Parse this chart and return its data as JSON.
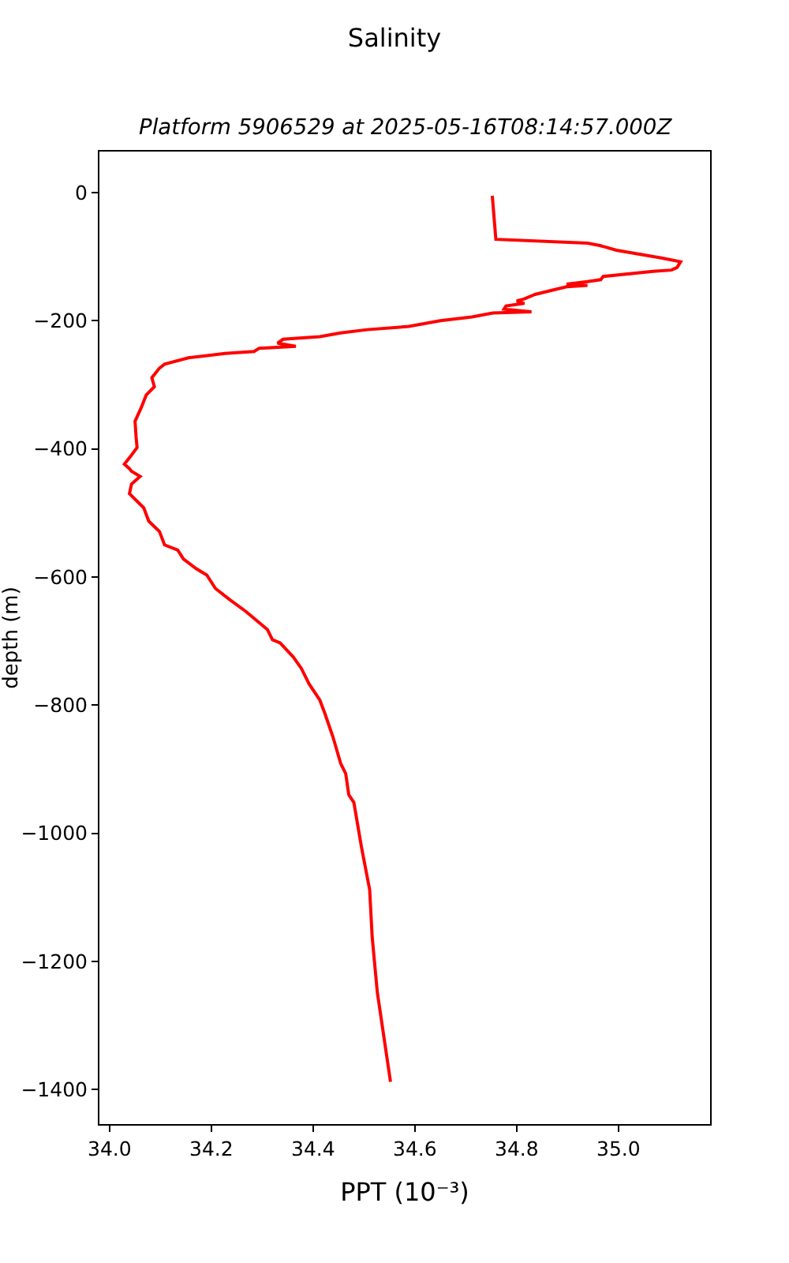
{
  "chart_data": {
    "type": "line",
    "title": "Salinity",
    "subtitle": "Platform 5906529 at 2025-05-16T08:14:57.000Z",
    "xlabel": "PPT (10⁻³)",
    "ylabel": "depth (m)",
    "series": [
      {
        "color": "#ff0000",
        "x": [
          34.752,
          34.759,
          34.939,
          34.965,
          34.996,
          35.032,
          35.084,
          35.122,
          35.115,
          35.104,
          35.068,
          34.97,
          34.965,
          34.939,
          34.898,
          34.939,
          34.898,
          34.877,
          34.836,
          34.815,
          34.8,
          34.815,
          34.779,
          34.775,
          34.829,
          34.753,
          34.712,
          34.65,
          34.588,
          34.506,
          34.454,
          34.413,
          34.341,
          34.33,
          34.366,
          34.294,
          34.284,
          34.227,
          34.155,
          34.108,
          34.098,
          34.083,
          34.088,
          34.072,
          34.062,
          34.05,
          34.052,
          34.054,
          34.041,
          34.029,
          34.039,
          34.043,
          34.06,
          34.043,
          34.039,
          34.067,
          34.077,
          34.098,
          34.108,
          34.134,
          34.145,
          34.17,
          34.191,
          34.208,
          34.237,
          34.268,
          34.31,
          34.32,
          34.335,
          34.361,
          34.377,
          34.392,
          34.413,
          34.423,
          34.439,
          34.454,
          34.464,
          34.47,
          34.48,
          34.495,
          34.511,
          34.516,
          34.526,
          34.552
        ],
        "values": [
          -5,
          -73,
          -79,
          -83,
          -90,
          -95,
          -102,
          -108,
          -117,
          -121,
          -123,
          -131,
          -136,
          -139,
          -143,
          -145,
          -147,
          -151,
          -159,
          -166,
          -169,
          -173,
          -177,
          -182,
          -186,
          -188,
          -194,
          -200,
          -209,
          -214,
          -219,
          -225,
          -229,
          -235,
          -240,
          -243,
          -248,
          -251,
          -258,
          -268,
          -274,
          -289,
          -303,
          -316,
          -336,
          -357,
          -381,
          -398,
          -412,
          -424,
          -431,
          -435,
          -443,
          -455,
          -470,
          -492,
          -513,
          -529,
          -550,
          -558,
          -572,
          -587,
          -597,
          -618,
          -636,
          -654,
          -682,
          -698,
          -703,
          -725,
          -743,
          -767,
          -792,
          -813,
          -850,
          -891,
          -907,
          -940,
          -952,
          -1022,
          -1088,
          -1162,
          -1248,
          -1388
        ]
      }
    ],
    "xlim": [
      33.98,
      35.18
    ],
    "ylim": [
      -1454,
      64
    ],
    "xticks": [
      {
        "value": 34,
        "label": "34.0"
      },
      34.2,
      34.4,
      34.6,
      34.8,
      {
        "value": 35,
        "label": "35.0"
      }
    ],
    "yticks": [
      0,
      {
        "value": -200,
        "label": "−200"
      },
      {
        "value": -400,
        "label": "−400"
      },
      {
        "value": -600,
        "label": "−600"
      },
      {
        "value": -800,
        "label": "−800"
      },
      {
        "value": -1000,
        "label": "−1000"
      },
      {
        "value": -1200,
        "label": "−1200"
      },
      {
        "value": -1400,
        "label": "−1400"
      }
    ],
    "grid": false,
    "line_style": "solid"
  }
}
